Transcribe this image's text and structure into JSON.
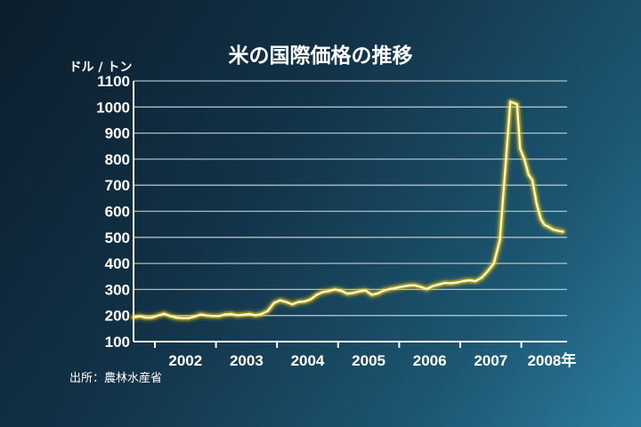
{
  "chart_data": {
    "type": "line",
    "title": "米の国際価格の推移",
    "ylabel": "ドル / トン",
    "xlabel": "",
    "ylim": [
      100,
      1100
    ],
    "yticks": [
      "100",
      "200",
      "300",
      "400",
      "500",
      "600",
      "700",
      "800",
      "900",
      "1000",
      "1100"
    ],
    "xlim": [
      2001.65,
      2008.75
    ],
    "xticks": [
      {
        "year": 2002,
        "label": "2002"
      },
      {
        "year": 2003,
        "label": "2003"
      },
      {
        "year": 2004,
        "label": "2004"
      },
      {
        "year": 2005,
        "label": "2005"
      },
      {
        "year": 2006,
        "label": "2006"
      },
      {
        "year": 2007,
        "label": "2007"
      },
      {
        "year": 2008,
        "label": "2008年"
      }
    ],
    "grid": true,
    "source": "出所：農林水産省",
    "series": [
      {
        "x": [
          2001.65,
          2001.75,
          2001.85,
          2001.95,
          2002.05,
          2002.15,
          2002.25,
          2002.35,
          2002.45,
          2002.55,
          2002.65,
          2002.75,
          2002.85,
          2002.95,
          2003.05,
          2003.15,
          2003.25,
          2003.35,
          2003.45,
          2003.55,
          2003.65,
          2003.75,
          2003.85,
          2003.95,
          2004.05,
          2004.15,
          2004.25,
          2004.35,
          2004.45,
          2004.55,
          2004.65,
          2004.75,
          2004.85,
          2004.95,
          2005.05,
          2005.15,
          2005.25,
          2005.35,
          2005.45,
          2005.55,
          2005.65,
          2005.75,
          2005.85,
          2005.95,
          2006.05,
          2006.15,
          2006.25,
          2006.35,
          2006.45,
          2006.55,
          2006.65,
          2006.75,
          2006.85,
          2006.95,
          2007.05,
          2007.15,
          2007.25,
          2007.35,
          2007.45,
          2007.55,
          2007.65,
          2007.75,
          2007.82,
          2007.88,
          2007.93,
          2007.98,
          2008.05,
          2008.12,
          2008.18,
          2008.25,
          2008.32,
          2008.38,
          2008.45,
          2008.52,
          2008.6,
          2008.68
        ],
        "y": [
          193,
          197,
          192,
          192,
          200,
          207,
          198,
          192,
          190,
          190,
          196,
          204,
          200,
          198,
          198,
          204,
          206,
          201,
          203,
          206,
          201,
          206,
          218,
          248,
          258,
          252,
          243,
          252,
          254,
          262,
          280,
          290,
          294,
          300,
          295,
          284,
          287,
          293,
          296,
          280,
          285,
          296,
          302,
          306,
          311,
          315,
          316,
          310,
          302,
          313,
          319,
          325,
          324,
          327,
          332,
          335,
          332,
          345,
          370,
          400,
          490,
          800,
          1020,
          1015,
          1010,
          840,
          800,
          740,
          720,
          630,
          570,
          548,
          540,
          530,
          525,
          522
        ]
      }
    ]
  }
}
